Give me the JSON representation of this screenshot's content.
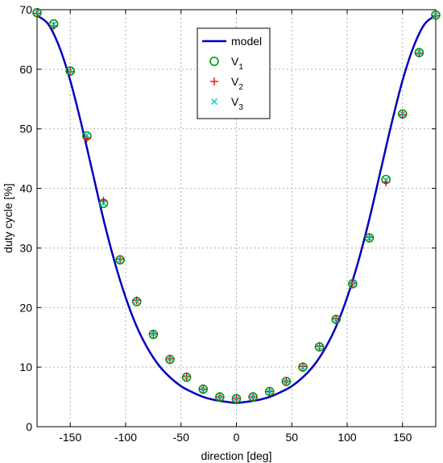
{
  "chart_data": {
    "type": "line",
    "xlabel": "direction [deg]",
    "ylabel": "duty cycle [%]",
    "xlim": [
      -180,
      180
    ],
    "ylim": [
      0,
      70
    ],
    "xticks": [
      -150,
      -100,
      -50,
      0,
      50,
      100,
      150
    ],
    "xtick_labels": [
      "-150",
      "-100",
      "-50",
      "0",
      "50",
      "100",
      "150"
    ],
    "yticks": [
      0,
      10,
      20,
      30,
      40,
      50,
      60,
      70
    ],
    "ytick_labels": [
      "0",
      "10",
      "20",
      "30",
      "40",
      "50",
      "60",
      "70"
    ],
    "grid": true,
    "legend_position": "top-center",
    "series": [
      {
        "name": "model",
        "kind": "line",
        "color": "#0000bf",
        "x": [
          -180,
          -170,
          -160,
          -150,
          -140,
          -130,
          -120,
          -110,
          -100,
          -90,
          -80,
          -70,
          -60,
          -50,
          -40,
          -30,
          -20,
          -10,
          0,
          10,
          20,
          30,
          40,
          50,
          60,
          70,
          80,
          90,
          100,
          110,
          120,
          130,
          140,
          150,
          160,
          170,
          180
        ],
        "y": [
          69.0,
          67.6,
          63.8,
          58.1,
          50.8,
          42.8,
          34.8,
          27.7,
          21.7,
          16.8,
          13.1,
          10.3,
          8.3,
          6.8,
          5.8,
          5.0,
          4.5,
          4.2,
          4.0,
          4.2,
          4.5,
          5.0,
          5.8,
          6.8,
          8.3,
          10.3,
          13.1,
          16.8,
          21.7,
          27.7,
          34.8,
          42.8,
          50.8,
          58.1,
          63.8,
          67.6,
          69.0
        ]
      },
      {
        "name": "V_1",
        "label_main": "V",
        "label_sub": "1",
        "kind": "circle",
        "color": "#009900",
        "x": [
          -180,
          -165,
          -150,
          -135,
          -120,
          -105,
          -90,
          -75,
          -60,
          -45,
          -30,
          -15,
          0,
          15,
          30,
          45,
          60,
          75,
          90,
          105,
          120,
          135,
          150,
          165,
          180
        ],
        "y": [
          69.5,
          67.6,
          59.7,
          48.8,
          37.5,
          28.0,
          21.0,
          15.5,
          11.3,
          8.3,
          6.3,
          5.0,
          4.7,
          5.0,
          5.9,
          7.6,
          10.0,
          13.4,
          18.0,
          24.0,
          31.7,
          41.5,
          52.5,
          62.8,
          69.1
        ]
      },
      {
        "name": "V_2",
        "label_main": "V",
        "label_sub": "2",
        "kind": "plus",
        "color": "#e00000",
        "x": [
          -180,
          -165,
          -150,
          -135,
          -120,
          -105,
          -90,
          -75,
          -60,
          -45,
          -30,
          -15,
          0,
          15,
          30,
          45,
          60,
          75,
          90,
          105,
          120,
          135,
          150,
          165,
          180
        ],
        "y": [
          69.4,
          67.3,
          59.6,
          48.4,
          37.9,
          28.1,
          21.2,
          15.6,
          11.4,
          8.4,
          6.3,
          5.0,
          4.7,
          5.0,
          5.9,
          7.6,
          10.1,
          13.5,
          18.1,
          24.1,
          31.8,
          41.0,
          52.4,
          62.7,
          69.0
        ]
      },
      {
        "name": "V_3",
        "label_main": "V",
        "label_sub": "3",
        "kind": "x",
        "color": "#00bfbf",
        "x": [
          -180,
          -165,
          -150,
          -135,
          -120,
          -105,
          -90,
          -75,
          -60,
          -45,
          -30,
          -15,
          0,
          15,
          30,
          45,
          60,
          75,
          90,
          105,
          120,
          135,
          150,
          165,
          180
        ],
        "y": [
          69.5,
          67.5,
          59.7,
          48.9,
          37.5,
          28.0,
          21.1,
          15.6,
          11.4,
          8.3,
          6.3,
          5.0,
          4.7,
          5.0,
          5.9,
          7.6,
          10.0,
          13.4,
          18.0,
          24.1,
          31.7,
          41.4,
          52.5,
          62.8,
          69.1
        ]
      }
    ]
  }
}
